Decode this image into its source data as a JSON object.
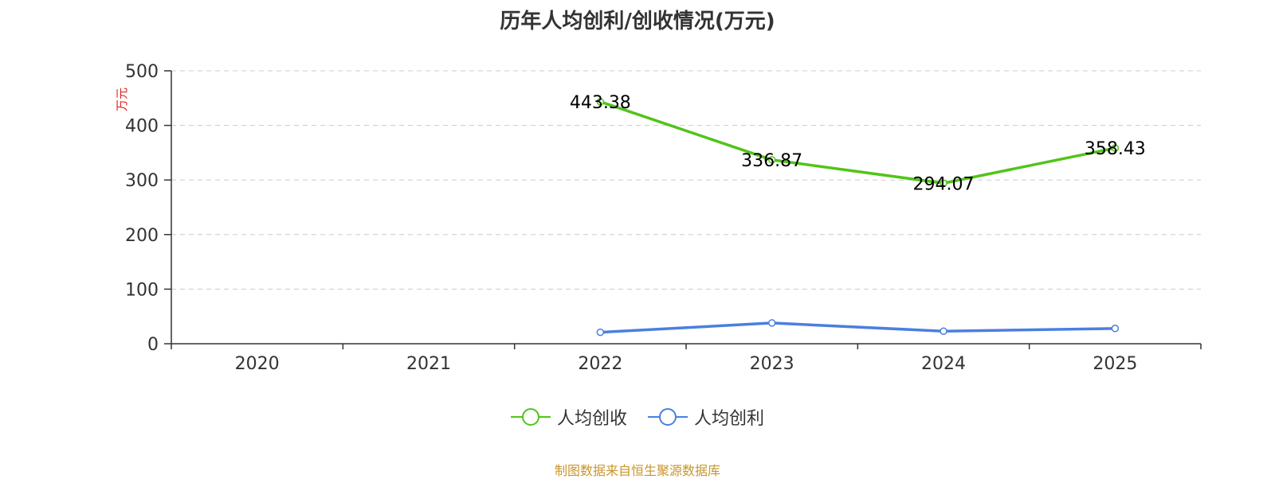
{
  "chart_data": {
    "type": "line",
    "title": "历年人均创利/创收情况(万元)",
    "ylabel": "万元",
    "categories": [
      "2020",
      "2021",
      "2022",
      "2023",
      "2024",
      "2025"
    ],
    "ylim": [
      0,
      500
    ],
    "yticks": [
      0,
      100,
      200,
      300,
      400,
      500
    ],
    "grid": "horizontal-dashed",
    "legend_position": "bottom-center",
    "series": [
      {
        "name": "人均创收",
        "color": "#52c41a",
        "values": [
          null,
          null,
          443.38,
          336.87,
          294.07,
          358.43
        ],
        "labels": [
          "",
          "",
          "443.38",
          "336.87",
          "294.07",
          "358.43"
        ]
      },
      {
        "name": "人均创利",
        "color": "#4a7fe0",
        "values": [
          null,
          null,
          21,
          38,
          23,
          28
        ],
        "labels": [
          "",
          "",
          "",
          "",
          "",
          ""
        ]
      }
    ]
  },
  "source_text": "制图数据来自恒生聚源数据库"
}
